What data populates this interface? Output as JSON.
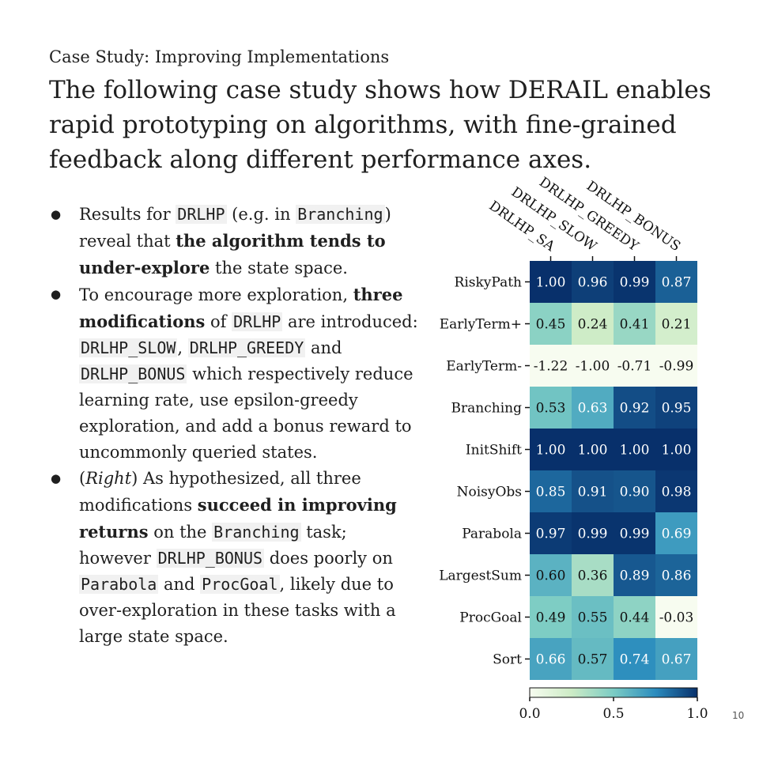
{
  "slide": {
    "subtitle": "Case Study: Improving Implementations",
    "headline": "The following case study shows how DERAIL enables rapid prototyping on algorithms, with fine-grained feedback along different performance axes.",
    "page_number": "10"
  },
  "bullets": [
    [
      {
        "t": "Results for "
      },
      {
        "t": "DRLHP",
        "s": "code"
      },
      {
        "t": " (e.g. in "
      },
      {
        "t": "Branching",
        "s": "code"
      },
      {
        "t": ") reveal that "
      },
      {
        "t": "the algorithm tends to under-explore",
        "s": "b"
      },
      {
        "t": " the state space."
      }
    ],
    [
      {
        "t": "To encourage more exploration, "
      },
      {
        "t": "three modifications",
        "s": "b"
      },
      {
        "t": " of "
      },
      {
        "t": "DRLHP",
        "s": "code"
      },
      {
        "t": " are introduced: "
      },
      {
        "t": "DRLHP_SLOW",
        "s": "code"
      },
      {
        "t": ", "
      },
      {
        "t": "DRLHP_GREEDY",
        "s": "code"
      },
      {
        "t": " and "
      },
      {
        "t": "DRLHP_BONUS",
        "s": "code"
      },
      {
        "t": " which respectively reduce learning rate, use epsilon-greedy exploration, and add a bonus reward to uncommonly queried states."
      }
    ],
    [
      {
        "t": "("
      },
      {
        "t": "Right",
        "s": "i"
      },
      {
        "t": ") As hypothesized, all three modifications "
      },
      {
        "t": "succeed in improving returns",
        "s": "b"
      },
      {
        "t": " on the "
      },
      {
        "t": "Branching",
        "s": "code"
      },
      {
        "t": " task; however "
      },
      {
        "t": "DRLHP_BONUS",
        "s": "code"
      },
      {
        "t": " does poorly on "
      },
      {
        "t": "Parabola",
        "s": "code"
      },
      {
        "t": " and "
      },
      {
        "t": "ProcGoal",
        "s": "code"
      },
      {
        "t": ", likely due to over-exploration in these tasks with a large state space."
      }
    ]
  ],
  "chart_data": {
    "type": "heatmap",
    "columns": [
      "DRLHP_SA",
      "DRLHP_SLOW",
      "DRLHP_GREEDY",
      "DRLHP_BONUS"
    ],
    "rows": [
      "RiskyPath",
      "EarlyTerm+",
      "EarlyTerm-",
      "Branching",
      "InitShift",
      "NoisyObs",
      "Parabola",
      "LargestSum",
      "ProcGoal",
      "Sort"
    ],
    "values": [
      [
        1.0,
        0.96,
        0.99,
        0.87
      ],
      [
        0.45,
        0.24,
        0.41,
        0.21
      ],
      [
        -1.22,
        -1.0,
        -0.71,
        -0.99
      ],
      [
        0.53,
        0.63,
        0.92,
        0.95
      ],
      [
        1.0,
        1.0,
        1.0,
        1.0
      ],
      [
        0.85,
        0.91,
        0.9,
        0.98
      ],
      [
        0.97,
        0.99,
        0.99,
        0.69
      ],
      [
        0.6,
        0.36,
        0.89,
        0.86
      ],
      [
        0.49,
        0.55,
        0.44,
        -0.03
      ],
      [
        0.66,
        0.57,
        0.74,
        0.67
      ]
    ],
    "colorbar": {
      "min": 0.0,
      "max": 1.0,
      "ticks": [
        "0.0",
        "0.5",
        "1.0"
      ]
    },
    "colormap": [
      "#f7fcf0",
      "#ccebc5",
      "#7bccc4",
      "#2b8cbe",
      "#08306b"
    ]
  }
}
